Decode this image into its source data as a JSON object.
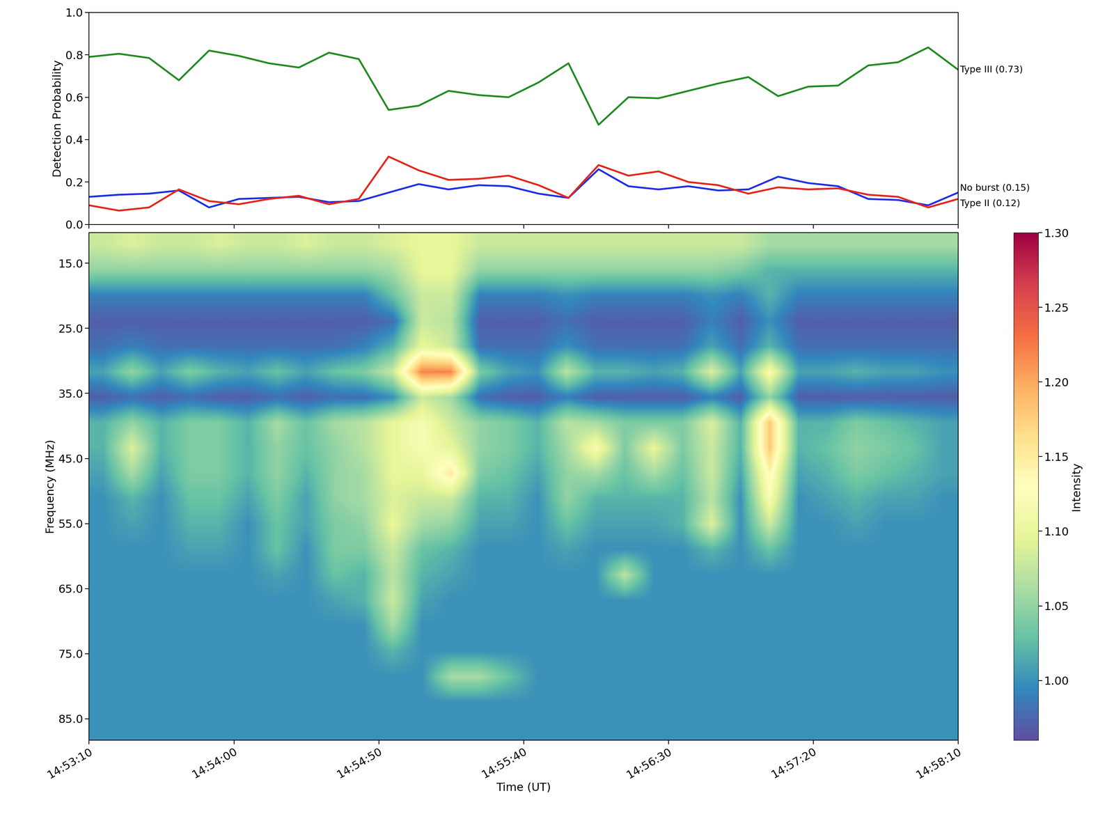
{
  "chart_data": [
    {
      "type": "line",
      "ylabel": "Detection Probability",
      "tick_labels": "y",
      "x": [
        53590,
        53600.3,
        53610.7,
        53621.0,
        53631.4,
        53641.7,
        53652.1,
        53662.4,
        53672.8,
        53683.1,
        53693.4,
        53703.8,
        53714.1,
        53724.5,
        53734.8,
        53745.2,
        53755.5,
        53765.9,
        53776.2,
        53786.6,
        53796.9,
        53807.2,
        53817.6,
        53827.9,
        53838.3,
        53848.6,
        53859.0,
        53869.3,
        53879.7,
        53890
      ],
      "xlim": [
        53590,
        53890
      ],
      "xticks": [
        53590,
        53640,
        53690,
        53740,
        53790,
        53840,
        53890
      ],
      "ylim": [
        0,
        1
      ],
      "yticks": [
        {
          "value": 0,
          "label": "0.0"
        },
        0.2,
        0.4,
        0.6,
        0.8,
        {
          "value": 1,
          "label": "1.0"
        }
      ],
      "series": [
        {
          "name": "Type III (0.73)",
          "color": "#228b22",
          "values": [
            0.79,
            0.805,
            0.785,
            0.68,
            0.82,
            0.795,
            0.76,
            0.74,
            0.81,
            0.78,
            0.54,
            0.56,
            0.63,
            0.61,
            0.6,
            0.67,
            0.76,
            0.47,
            0.6,
            0.595,
            0.63,
            0.665,
            0.695,
            0.605,
            0.65,
            0.655,
            0.75,
            0.765,
            0.835,
            0.73
          ]
        },
        {
          "name": "No burst (0.15)",
          "color": "#1f2fe6",
          "values": [
            0.13,
            0.14,
            0.145,
            0.16,
            0.08,
            0.12,
            0.125,
            0.13,
            0.105,
            0.11,
            0.15,
            0.19,
            0.165,
            0.185,
            0.18,
            0.145,
            0.125,
            0.26,
            0.18,
            0.165,
            0.18,
            0.16,
            0.165,
            0.225,
            0.195,
            0.18,
            0.12,
            0.115,
            0.09,
            0.15
          ]
        },
        {
          "name": "Type II (0.12)",
          "color": "#e3261a",
          "values": [
            0.09,
            0.065,
            0.08,
            0.165,
            0.11,
            0.095,
            0.12,
            0.135,
            0.095,
            0.12,
            0.32,
            0.255,
            0.21,
            0.215,
            0.23,
            0.185,
            0.125,
            0.28,
            0.23,
            0.25,
            0.2,
            0.185,
            0.145,
            0.175,
            0.165,
            0.17,
            0.14,
            0.13,
            0.08,
            0.12
          ]
        }
      ]
    },
    {
      "type": "heatmap",
      "xlabel": "Time (UT)",
      "ylabel": "Frequency (MHz)",
      "color": "Spectral_r",
      "xlim": [
        53590,
        53890
      ],
      "xticks": [
        {
          "value": 53590,
          "label": "14:53:10"
        },
        {
          "value": 53640,
          "label": "14:54:00"
        },
        {
          "value": 53690,
          "label": "14:54:50"
        },
        {
          "value": 53740,
          "label": "14:55:40"
        },
        {
          "value": 53790,
          "label": "14:56:30"
        },
        {
          "value": 53840,
          "label": "14:57:20"
        },
        {
          "value": 53890,
          "label": "14:58:10"
        }
      ],
      "ylim": [
        88.3,
        10.3
      ],
      "yticks": [
        15.0,
        25.0,
        35.0,
        45.0,
        55.0,
        65.0,
        75.0,
        85.0
      ],
      "colorbar": {
        "label": "Intensity",
        "range": [
          0.96,
          1.3
        ],
        "ticks": [
          {
            "value": 1.0,
            "label": "1.00"
          },
          {
            "value": 1.05,
            "label": "1.05"
          },
          {
            "value": 1.1,
            "label": "1.10"
          },
          {
            "value": 1.15,
            "label": "1.15"
          },
          {
            "value": 1.2,
            "label": "1.20"
          },
          {
            "value": 1.25,
            "label": "1.25"
          },
          {
            "value": 1.3,
            "label": "1.30"
          }
        ]
      },
      "cells": [
        [
          1.08,
          1.09,
          1.08,
          1.08,
          1.09,
          1.08,
          1.08,
          1.09,
          1.08,
          1.08,
          1.09,
          1.1,
          1.1,
          1.08,
          1.08,
          1.08,
          1.08,
          1.08,
          1.08,
          1.08,
          1.08,
          1.08,
          1.08,
          1.06,
          1.06,
          1.06,
          1.06,
          1.06,
          1.06,
          1.06
        ],
        [
          1.05,
          1.05,
          1.05,
          1.05,
          1.05,
          1.05,
          1.05,
          1.05,
          1.05,
          1.05,
          1.06,
          1.1,
          1.1,
          1.05,
          1.05,
          1.05,
          1.05,
          1.05,
          1.05,
          1.05,
          1.05,
          1.05,
          1.04,
          1.02,
          1.02,
          1.02,
          1.02,
          1.02,
          1.02,
          1.02
        ],
        [
          0.99,
          0.99,
          0.99,
          0.99,
          0.99,
          0.99,
          0.99,
          0.99,
          0.99,
          0.99,
          1.03,
          1.08,
          1.08,
          0.99,
          0.99,
          0.99,
          1.0,
          0.99,
          0.99,
          0.99,
          0.99,
          1.0,
          0.99,
          1.02,
          0.99,
          0.99,
          0.99,
          0.99,
          0.99,
          0.99
        ],
        [
          0.97,
          0.97,
          0.97,
          0.97,
          0.97,
          0.97,
          0.97,
          0.97,
          0.97,
          0.97,
          0.98,
          1.08,
          1.07,
          0.97,
          0.97,
          0.97,
          0.98,
          0.97,
          0.97,
          0.97,
          0.97,
          0.99,
          0.97,
          1.0,
          0.97,
          0.97,
          0.97,
          0.97,
          0.97,
          0.97
        ],
        [
          0.98,
          0.99,
          0.98,
          0.98,
          0.98,
          0.98,
          0.98,
          0.98,
          0.98,
          0.99,
          1.02,
          1.1,
          1.08,
          0.98,
          0.98,
          0.98,
          1.0,
          0.98,
          0.98,
          0.98,
          0.98,
          1.01,
          0.98,
          1.02,
          0.98,
          0.98,
          0.98,
          0.98,
          0.98,
          0.98
        ],
        [
          1.01,
          1.05,
          1.01,
          1.04,
          1.02,
          1.01,
          1.03,
          1.01,
          1.03,
          1.04,
          1.08,
          1.22,
          1.22,
          1.04,
          1.01,
          1.0,
          1.07,
          1.02,
          1.02,
          1.01,
          1.02,
          1.09,
          1.01,
          1.12,
          1.01,
          1.01,
          1.02,
          1.01,
          1.01,
          1.0
        ],
        [
          0.97,
          0.98,
          0.97,
          0.98,
          0.97,
          0.97,
          0.98,
          0.97,
          0.98,
          0.98,
          1.0,
          1.08,
          1.06,
          0.98,
          0.97,
          0.97,
          0.99,
          0.97,
          0.97,
          0.97,
          0.97,
          0.99,
          0.97,
          1.05,
          0.97,
          0.97,
          0.97,
          0.97,
          0.97,
          0.97
        ],
        [
          1.02,
          1.05,
          1.02,
          1.04,
          1.04,
          1.02,
          1.06,
          1.03,
          1.06,
          1.07,
          1.1,
          1.12,
          1.08,
          1.05,
          1.04,
          1.02,
          1.07,
          1.06,
          1.04,
          1.04,
          1.04,
          1.09,
          1.02,
          1.18,
          1.02,
          1.02,
          1.04,
          1.03,
          1.02,
          1.01
        ],
        [
          1.02,
          1.09,
          1.02,
          1.04,
          1.04,
          1.02,
          1.05,
          1.03,
          1.05,
          1.07,
          1.1,
          1.12,
          1.1,
          1.05,
          1.04,
          1.02,
          1.06,
          1.12,
          1.04,
          1.1,
          1.04,
          1.08,
          1.02,
          1.18,
          1.02,
          1.03,
          1.05,
          1.04,
          1.03,
          1.01
        ],
        [
          1.01,
          1.06,
          1.01,
          1.04,
          1.04,
          1.02,
          1.05,
          1.02,
          1.05,
          1.06,
          1.1,
          1.1,
          1.15,
          1.04,
          1.03,
          1.01,
          1.05,
          1.06,
          1.03,
          1.06,
          1.03,
          1.08,
          1.01,
          1.14,
          1.01,
          1.02,
          1.04,
          1.03,
          1.02,
          1.01
        ],
        [
          1.0,
          1.02,
          1.0,
          1.03,
          1.03,
          1.01,
          1.04,
          1.01,
          1.05,
          1.06,
          1.09,
          1.08,
          1.08,
          1.02,
          1.02,
          1.0,
          1.05,
          1.02,
          1.02,
          1.02,
          1.02,
          1.07,
          1.0,
          1.12,
          1.0,
          1.01,
          1.02,
          1.01,
          1.01,
          1.0
        ],
        [
          1.0,
          1.01,
          1.0,
          1.02,
          1.02,
          1.0,
          1.03,
          1.01,
          1.04,
          1.05,
          1.1,
          1.06,
          1.05,
          1.01,
          1.01,
          1.0,
          1.03,
          1.01,
          1.01,
          1.01,
          1.02,
          1.09,
          1.0,
          1.08,
          1.0,
          1.0,
          1.01,
          1.0,
          1.0,
          1.0
        ],
        [
          1.0,
          1.0,
          1.0,
          1.01,
          1.01,
          1.0,
          1.03,
          1.0,
          1.04,
          1.04,
          1.08,
          1.03,
          1.02,
          1.0,
          1.0,
          1.0,
          1.01,
          1.0,
          1.0,
          1.0,
          1.0,
          1.02,
          1.0,
          1.03,
          1.0,
          1.0,
          1.0,
          1.0,
          1.0,
          1.0
        ],
        [
          1.0,
          1.0,
          1.0,
          1.0,
          1.0,
          1.0,
          1.01,
          1.0,
          1.03,
          1.02,
          1.07,
          1.02,
          1.01,
          1.0,
          1.0,
          1.0,
          1.0,
          1.0,
          1.07,
          1.0,
          1.0,
          1.0,
          1.0,
          1.0,
          1.0,
          1.0,
          1.0,
          1.0,
          1.0,
          1.0
        ],
        [
          1.0,
          1.0,
          1.0,
          1.0,
          1.0,
          1.0,
          1.0,
          1.0,
          1.01,
          1.02,
          1.08,
          1.01,
          1.0,
          1.0,
          1.0,
          1.0,
          1.0,
          1.0,
          1.0,
          1.0,
          1.0,
          1.0,
          1.0,
          1.0,
          1.0,
          1.0,
          1.0,
          1.0,
          1.0,
          1.0
        ],
        [
          1.0,
          1.0,
          1.0,
          1.0,
          1.0,
          1.0,
          1.0,
          1.0,
          1.0,
          1.0,
          1.06,
          1.0,
          1.0,
          1.0,
          1.0,
          1.0,
          1.0,
          1.0,
          1.0,
          1.0,
          1.0,
          1.0,
          1.0,
          1.0,
          1.0,
          1.0,
          1.0,
          1.0,
          1.0,
          1.0
        ],
        [
          1.0,
          1.0,
          1.0,
          1.0,
          1.0,
          1.0,
          1.0,
          1.0,
          1.0,
          1.0,
          1.02,
          1.0,
          1.0,
          1.0,
          1.0,
          1.0,
          1.0,
          1.0,
          1.0,
          1.0,
          1.0,
          1.0,
          1.0,
          1.0,
          1.0,
          1.0,
          1.0,
          1.0,
          1.0,
          1.0
        ],
        [
          1.0,
          1.0,
          1.0,
          1.0,
          1.0,
          1.0,
          1.0,
          1.0,
          1.0,
          1.0,
          1.0,
          1.0,
          1.06,
          1.06,
          1.03,
          1.0,
          1.0,
          1.0,
          1.0,
          1.0,
          1.0,
          1.0,
          1.0,
          1.0,
          1.0,
          1.0,
          1.0,
          1.0,
          1.0,
          1.0
        ],
        [
          1.0,
          1.0,
          1.0,
          1.0,
          1.0,
          1.0,
          1.0,
          1.0,
          1.0,
          1.0,
          1.0,
          1.0,
          1.0,
          1.0,
          1.0,
          1.0,
          1.0,
          1.0,
          1.0,
          1.0,
          1.0,
          1.0,
          1.0,
          1.0,
          1.0,
          1.0,
          1.0,
          1.0,
          1.0,
          1.0
        ],
        [
          1.0,
          1.0,
          1.0,
          1.0,
          1.0,
          1.0,
          1.0,
          1.0,
          1.0,
          1.0,
          1.0,
          1.0,
          1.0,
          1.0,
          1.0,
          1.0,
          1.0,
          1.0,
          1.0,
          1.0,
          1.0,
          1.0,
          1.0,
          1.0,
          1.0,
          1.0,
          1.0,
          1.0,
          1.0,
          1.0
        ]
      ]
    }
  ]
}
